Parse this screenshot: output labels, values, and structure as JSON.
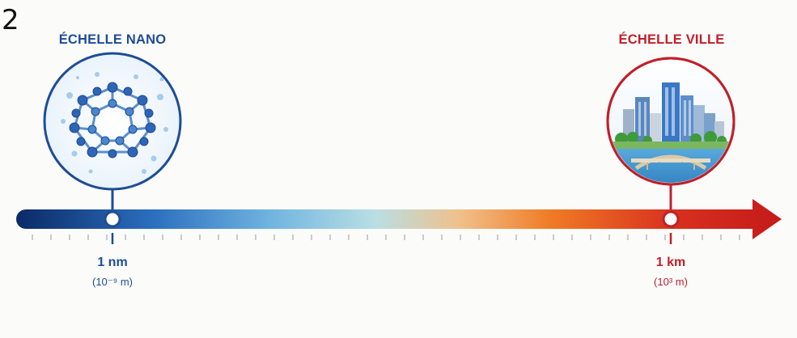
{
  "page_number": "2",
  "left_scale": {
    "title": "ÉCHELLE NANO",
    "value_label": "1 nm",
    "exponent_label": "(10⁻⁹ m)",
    "color": "#1e4d96",
    "illustration": "fullerene-molecule-icon"
  },
  "right_scale": {
    "title": "ÉCHELLE VILLE",
    "value_label": "1 km",
    "exponent_label": "(10³ m)",
    "color": "#c0202a",
    "illustration": "city-skyline-icon"
  },
  "axis": {
    "gradient_colors": [
      "#0b2a66",
      "#2c6fc0",
      "#6fb3df",
      "#b9dfe4",
      "#f0c08a",
      "#f07a24",
      "#d8301f",
      "#c41a1a"
    ]
  }
}
